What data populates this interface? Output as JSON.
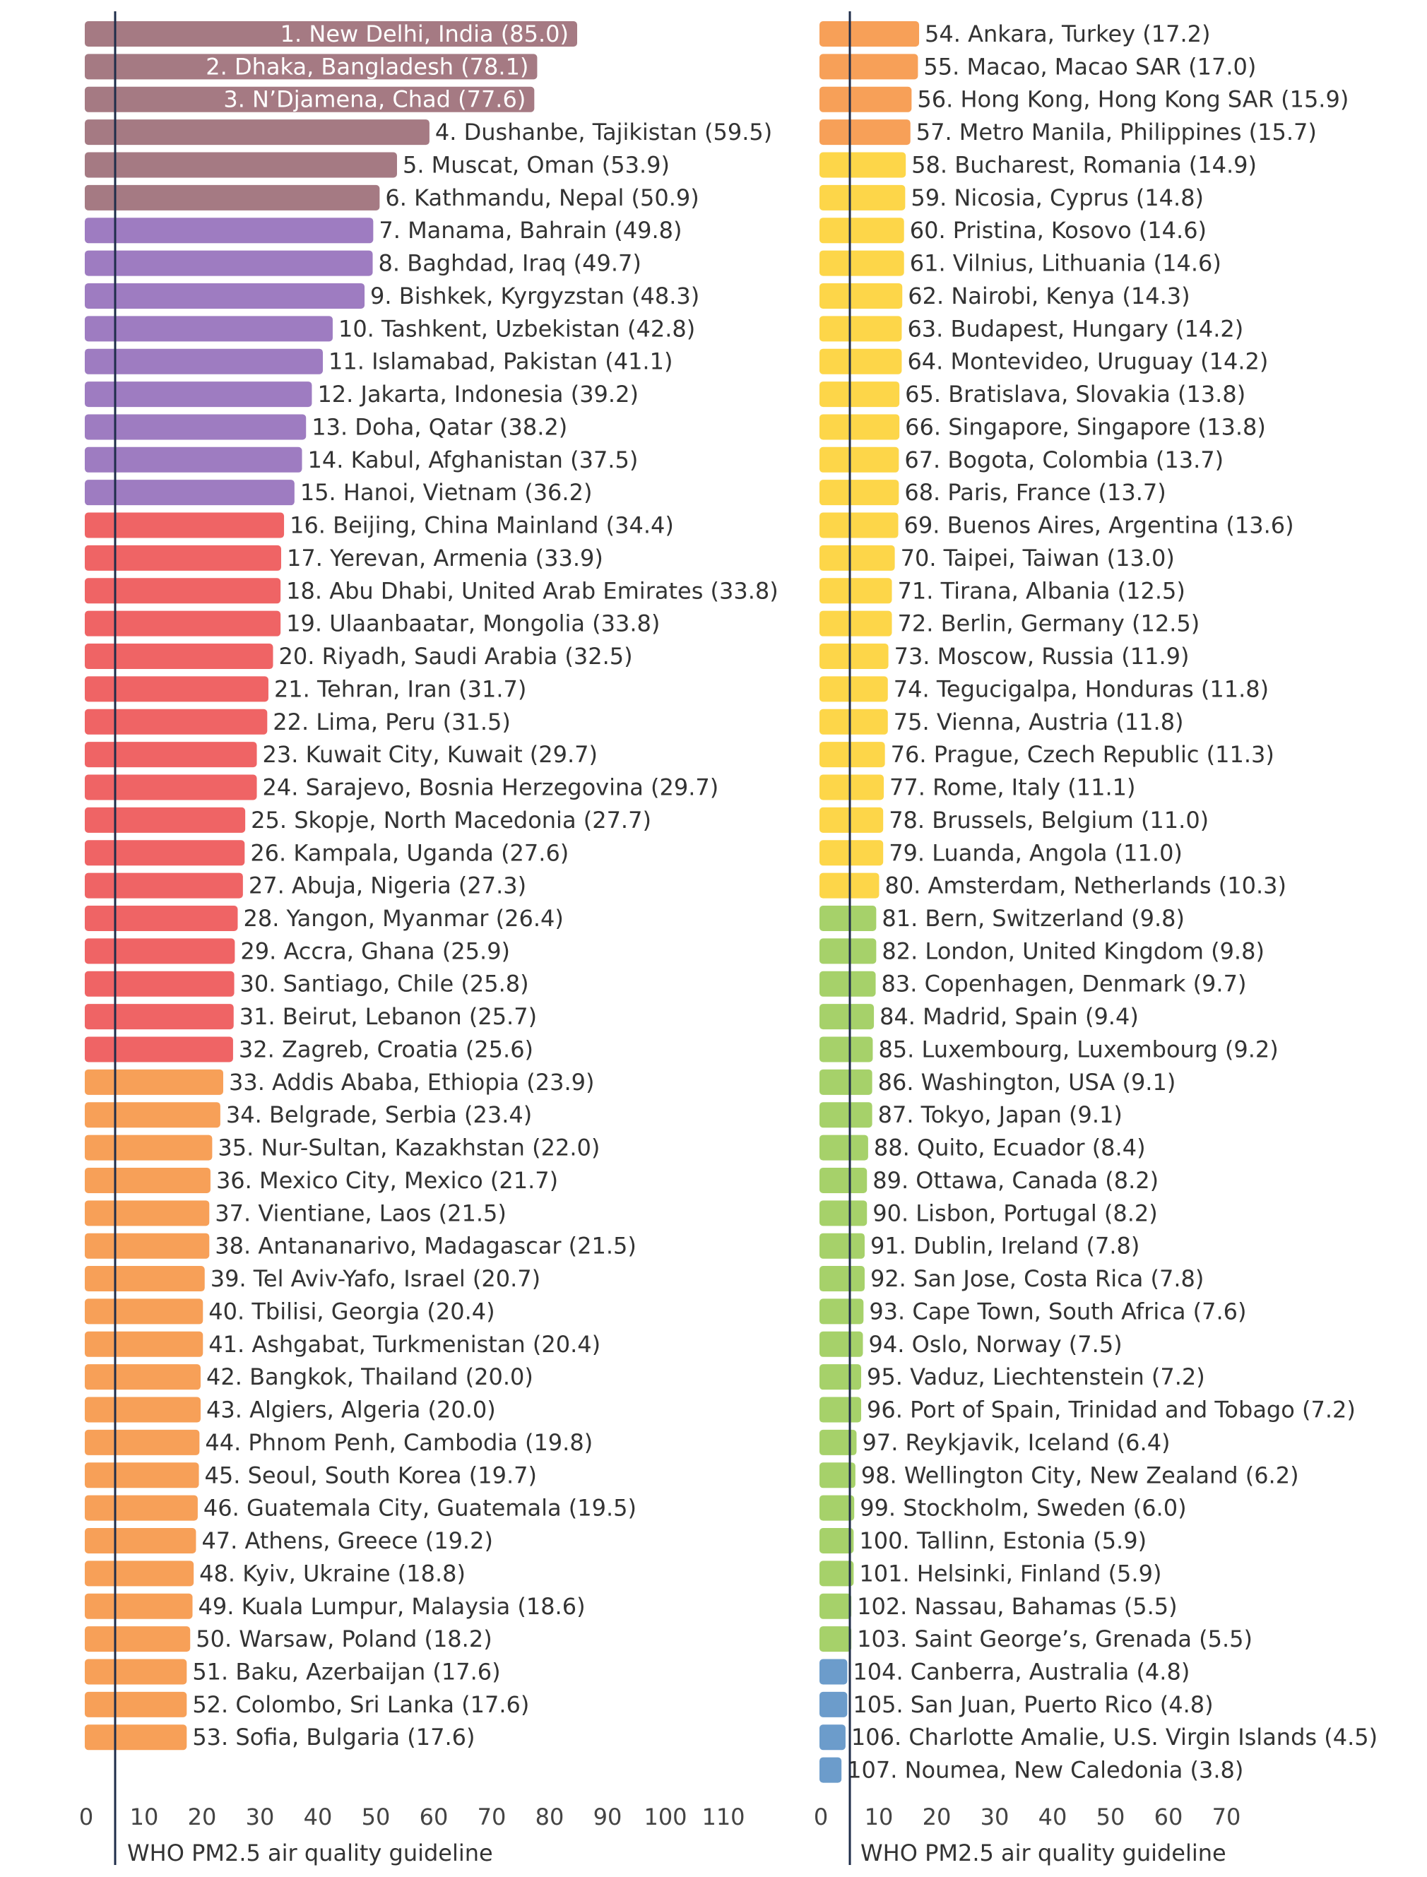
{
  "chart_data": {
    "type": "bar",
    "orientation": "horizontal",
    "reference_line": {
      "value": 5,
      "label": "WHO PM2.5 air quality guideline"
    },
    "category_colors": {
      "brown": "#A57A83",
      "purple": "#9E7CC1",
      "red": "#EF6465",
      "orange": "#F7A058",
      "yellow": "#FDD649",
      "green": "#A6D16A",
      "blue": "#6C9CCB"
    },
    "panels": [
      {
        "x_ticks": [
          0,
          10,
          20,
          30,
          40,
          50,
          60,
          70,
          80,
          90,
          100,
          110
        ],
        "xlim": [
          0,
          110
        ],
        "bars": [
          {
            "label": "1. New Delhi, India (85.0)",
            "value": 85.0,
            "color": "brown",
            "inside": true
          },
          {
            "label": "2. Dhaka, Bangladesh (78.1)",
            "value": 78.1,
            "color": "brown",
            "inside": true
          },
          {
            "label": "3. N’Djamena, Chad  (77.6)",
            "value": 77.6,
            "color": "brown",
            "inside": true
          },
          {
            "label": "4. Dushanbe, Tajikistan (59.5)",
            "value": 59.5,
            "color": "brown"
          },
          {
            "label": "5. Muscat, Oman (53.9)",
            "value": 53.9,
            "color": "brown"
          },
          {
            "label": "6. Kathmandu, Nepal (50.9)",
            "value": 50.9,
            "color": "brown"
          },
          {
            "label": "7. Manama, Bahrain (49.8)",
            "value": 49.8,
            "color": "purple"
          },
          {
            "label": "8. Baghdad, Iraq (49.7)",
            "value": 49.7,
            "color": "purple"
          },
          {
            "label": "9. Bishkek, Kyrgyzstan (48.3)",
            "value": 48.3,
            "color": "purple"
          },
          {
            "label": "10. Tashkent, Uzbekistan (42.8)",
            "value": 42.8,
            "color": "purple"
          },
          {
            "label": "11. Islamabad, Pakistan (41.1)",
            "value": 41.1,
            "color": "purple"
          },
          {
            "label": "12. Jakarta, Indonesia (39.2)",
            "value": 39.2,
            "color": "purple"
          },
          {
            "label": "13. Doha, Qatar (38.2)",
            "value": 38.2,
            "color": "purple"
          },
          {
            "label": "14. Kabul, Afghanistan (37.5)",
            "value": 37.5,
            "color": "purple"
          },
          {
            "label": "15. Hanoi, Vietnam (36.2)",
            "value": 36.2,
            "color": "purple"
          },
          {
            "label": "16. Beijing, China Mainland (34.4)",
            "value": 34.4,
            "color": "red"
          },
          {
            "label": "17. Yerevan, Armenia (33.9)",
            "value": 33.9,
            "color": "red"
          },
          {
            "label": "18. Abu Dhabi, United Arab Emirates (33.8)",
            "value": 33.8,
            "color": "red"
          },
          {
            "label": "19. Ulaanbaatar, Mongolia (33.8)",
            "value": 33.8,
            "color": "red"
          },
          {
            "label": "20. Riyadh, Saudi Arabia (32.5)",
            "value": 32.5,
            "color": "red"
          },
          {
            "label": "21. Tehran, Iran (31.7)",
            "value": 31.7,
            "color": "red"
          },
          {
            "label": "22. Lima, Peru (31.5)",
            "value": 31.5,
            "color": "red"
          },
          {
            "label": "23. Kuwait City, Kuwait (29.7)",
            "value": 29.7,
            "color": "red"
          },
          {
            "label": "24. Sarajevo, Bosnia Herzegovina (29.7)",
            "value": 29.7,
            "color": "red"
          },
          {
            "label": "25. Skopje, North Macedonia (27.7)",
            "value": 27.7,
            "color": "red"
          },
          {
            "label": "26. Kampala, Uganda (27.6)",
            "value": 27.6,
            "color": "red"
          },
          {
            "label": "27. Abuja, Nigeria (27.3)",
            "value": 27.3,
            "color": "red"
          },
          {
            "label": "28. Yangon, Myanmar (26.4)",
            "value": 26.4,
            "color": "red"
          },
          {
            "label": "29. Accra, Ghana (25.9)",
            "value": 25.9,
            "color": "red"
          },
          {
            "label": "30. Santiago, Chile (25.8)",
            "value": 25.8,
            "color": "red"
          },
          {
            "label": "31. Beirut, Lebanon (25.7)",
            "value": 25.7,
            "color": "red"
          },
          {
            "label": "32. Zagreb, Croatia (25.6)",
            "value": 25.6,
            "color": "red"
          },
          {
            "label": "33. Addis Ababa, Ethiopia (23.9)",
            "value": 23.9,
            "color": "orange"
          },
          {
            "label": "34. Belgrade, Serbia (23.4)",
            "value": 23.4,
            "color": "orange"
          },
          {
            "label": "35. Nur-Sultan, Kazakhstan (22.0)",
            "value": 22.0,
            "color": "orange"
          },
          {
            "label": "36. Mexico City, Mexico (21.7)",
            "value": 21.7,
            "color": "orange"
          },
          {
            "label": "37. Vientiane, Laos (21.5)",
            "value": 21.5,
            "color": "orange"
          },
          {
            "label": "38. Antananarivo, Madagascar (21.5)",
            "value": 21.5,
            "color": "orange"
          },
          {
            "label": "39. Tel Aviv-Yafo, Israel (20.7)",
            "value": 20.7,
            "color": "orange"
          },
          {
            "label": "40. Tbilisi, Georgia (20.4)",
            "value": 20.4,
            "color": "orange"
          },
          {
            "label": "41. Ashgabat, Turkmenistan (20.4)",
            "value": 20.4,
            "color": "orange"
          },
          {
            "label": "42. Bangkok, Thailand (20.0)",
            "value": 20.0,
            "color": "orange"
          },
          {
            "label": "43. Algiers, Algeria (20.0)",
            "value": 20.0,
            "color": "orange"
          },
          {
            "label": "44. Phnom Penh, Cambodia (19.8)",
            "value": 19.8,
            "color": "orange"
          },
          {
            "label": "45. Seoul, South Korea (19.7)",
            "value": 19.7,
            "color": "orange"
          },
          {
            "label": "46. Guatemala City, Guatemala (19.5)",
            "value": 19.5,
            "color": "orange"
          },
          {
            "label": "47. Athens, Greece (19.2)",
            "value": 19.2,
            "color": "orange"
          },
          {
            "label": "48. Kyiv, Ukraine (18.8)",
            "value": 18.8,
            "color": "orange"
          },
          {
            "label": "49. Kuala Lumpur, Malaysia (18.6)",
            "value": 18.6,
            "color": "orange"
          },
          {
            "label": "50. Warsaw, Poland (18.2)",
            "value": 18.2,
            "color": "orange"
          },
          {
            "label": "51. Baku, Azerbaijan (17.6)",
            "value": 17.6,
            "color": "orange"
          },
          {
            "label": "52. Colombo, Sri Lanka (17.6)",
            "value": 17.6,
            "color": "orange"
          },
          {
            "label": "53. Sofia, Bulgaria (17.6)",
            "value": 17.6,
            "color": "orange"
          }
        ]
      },
      {
        "x_ticks": [
          0,
          10,
          20,
          30,
          40,
          50,
          60,
          70
        ],
        "xlim": [
          0,
          70
        ],
        "bars": [
          {
            "label": "54. Ankara, Turkey (17.2)",
            "value": 17.2,
            "color": "orange"
          },
          {
            "label": "55. Macao, Macao SAR (17.0)",
            "value": 17.0,
            "color": "orange"
          },
          {
            "label": "56. Hong Kong, Hong Kong SAR (15.9)",
            "value": 15.9,
            "color": "orange"
          },
          {
            "label": "57. Metro Manila, Philippines (15.7)",
            "value": 15.7,
            "color": "orange"
          },
          {
            "label": "58. Bucharest, Romania (14.9)",
            "value": 14.9,
            "color": "yellow"
          },
          {
            "label": "59. Nicosia, Cyprus (14.8)",
            "value": 14.8,
            "color": "yellow"
          },
          {
            "label": "60. Pristina, Kosovo (14.6)",
            "value": 14.6,
            "color": "yellow"
          },
          {
            "label": "61. Vilnius, Lithuania (14.6)",
            "value": 14.6,
            "color": "yellow"
          },
          {
            "label": "62. Nairobi, Kenya (14.3)",
            "value": 14.3,
            "color": "yellow"
          },
          {
            "label": "63. Budapest, Hungary (14.2)",
            "value": 14.2,
            "color": "yellow"
          },
          {
            "label": "64. Montevideo, Uruguay (14.2)",
            "value": 14.2,
            "color": "yellow"
          },
          {
            "label": "65. Bratislava, Slovakia (13.8)",
            "value": 13.8,
            "color": "yellow"
          },
          {
            "label": "66. Singapore, Singapore (13.8)",
            "value": 13.8,
            "color": "yellow"
          },
          {
            "label": "67. Bogota, Colombia (13.7)",
            "value": 13.7,
            "color": "yellow"
          },
          {
            "label": "68. Paris, France (13.7)",
            "value": 13.7,
            "color": "yellow"
          },
          {
            "label": "69. Buenos Aires, Argentina (13.6)",
            "value": 13.6,
            "color": "yellow"
          },
          {
            "label": "70. Taipei, Taiwan (13.0)",
            "value": 13.0,
            "color": "yellow"
          },
          {
            "label": "71. Tirana, Albania (12.5)",
            "value": 12.5,
            "color": "yellow"
          },
          {
            "label": "72. Berlin, Germany (12.5)",
            "value": 12.5,
            "color": "yellow"
          },
          {
            "label": "73. Moscow, Russia (11.9)",
            "value": 11.9,
            "color": "yellow"
          },
          {
            "label": "74. Tegucigalpa, Honduras (11.8)",
            "value": 11.8,
            "color": "yellow"
          },
          {
            "label": "75. Vienna, Austria (11.8)",
            "value": 11.8,
            "color": "yellow"
          },
          {
            "label": "76. Prague, Czech Republic (11.3)",
            "value": 11.3,
            "color": "yellow"
          },
          {
            "label": "77. Rome, Italy (11.1)",
            "value": 11.1,
            "color": "yellow"
          },
          {
            "label": "78. Brussels, Belgium (11.0)",
            "value": 11.0,
            "color": "yellow"
          },
          {
            "label": "79. Luanda, Angola (11.0)",
            "value": 11.0,
            "color": "yellow"
          },
          {
            "label": "80. Amsterdam, Netherlands (10.3)",
            "value": 10.3,
            "color": "yellow"
          },
          {
            "label": "81. Bern, Switzerland (9.8)",
            "value": 9.8,
            "color": "green"
          },
          {
            "label": "82. London, United Kingdom (9.8)",
            "value": 9.8,
            "color": "green"
          },
          {
            "label": "83. Copenhagen, Denmark (9.7)",
            "value": 9.7,
            "color": "green"
          },
          {
            "label": "84. Madrid, Spain (9.4)",
            "value": 9.4,
            "color": "green"
          },
          {
            "label": "85. Luxembourg, Luxembourg (9.2)",
            "value": 9.2,
            "color": "green"
          },
          {
            "label": "86. Washington, USA (9.1)",
            "value": 9.1,
            "color": "green"
          },
          {
            "label": "87. Tokyo, Japan (9.1)",
            "value": 9.1,
            "color": "green"
          },
          {
            "label": "88. Quito, Ecuador (8.4)",
            "value": 8.4,
            "color": "green"
          },
          {
            "label": "89. Ottawa, Canada (8.2)",
            "value": 8.2,
            "color": "green"
          },
          {
            "label": "90. Lisbon, Portugal (8.2)",
            "value": 8.2,
            "color": "green"
          },
          {
            "label": "91. Dublin, Ireland (7.8)",
            "value": 7.8,
            "color": "green"
          },
          {
            "label": "92. San Jose, Costa Rica (7.8)",
            "value": 7.8,
            "color": "green"
          },
          {
            "label": "93. Cape Town, South Africa (7.6)",
            "value": 7.6,
            "color": "green"
          },
          {
            "label": "94. Oslo, Norway (7.5)",
            "value": 7.5,
            "color": "green"
          },
          {
            "label": "95. Vaduz, Liechtenstein (7.2)",
            "value": 7.2,
            "color": "green"
          },
          {
            "label": "96. Port of Spain, Trinidad and Tobago (7.2)",
            "value": 7.2,
            "color": "green"
          },
          {
            "label": "97. Reykjavik, Iceland (6.4)",
            "value": 6.4,
            "color": "green"
          },
          {
            "label": "98. Wellington City, New Zealand (6.2)",
            "value": 6.2,
            "color": "green"
          },
          {
            "label": "99. Stockholm, Sweden (6.0)",
            "value": 6.0,
            "color": "green"
          },
          {
            "label": "100. Tallinn, Estonia (5.9)",
            "value": 5.9,
            "color": "green"
          },
          {
            "label": "101. Helsinki, Finland (5.9)",
            "value": 5.9,
            "color": "green"
          },
          {
            "label": "102. Nassau, Bahamas (5.5)",
            "value": 5.5,
            "color": "green"
          },
          {
            "label": "103. Saint George’s, Grenada (5.5)",
            "value": 5.5,
            "color": "green"
          },
          {
            "label": "104. Canberra, Australia (4.8)",
            "value": 4.8,
            "color": "blue"
          },
          {
            "label": "105. San Juan, Puerto Rico (4.8)",
            "value": 4.8,
            "color": "blue"
          },
          {
            "label": "106. Charlotte Amalie, U.S. Virgin Islands (4.5)",
            "value": 4.5,
            "color": "blue"
          },
          {
            "label": "107. Noumea, New Caledonia (3.8)",
            "value": 3.8,
            "color": "blue"
          }
        ]
      }
    ]
  }
}
